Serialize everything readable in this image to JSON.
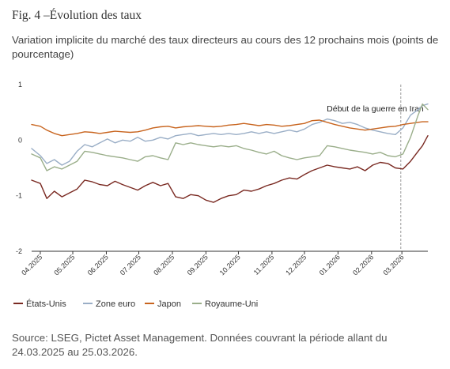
{
  "figure": {
    "title": "Fig. 4 –Évolution des taux",
    "subtitle": "Variation implicite du marché des taux directeurs au cours des 12 prochains mois (points de pourcentage)",
    "source": "Source: LSEG, Pictet Asset Management. Données couvrant la période allant du 24.03.2025 au 25.03.2026."
  },
  "chart_data": {
    "type": "line",
    "title": "Fig. 4 –Évolution des taux",
    "subtitle": "Variation implicite du marché des taux directeurs au cours des 12 prochains mois (points de pourcentage)",
    "ylim": [
      -2,
      1
    ],
    "yticks": [
      -2,
      -1,
      0,
      1
    ],
    "ytick_labels": [
      "-2",
      "-1",
      "0",
      "1"
    ],
    "xlim": [
      "2025-03-24",
      "2026-03-25"
    ],
    "xticks": [
      "2025-04-01",
      "2025-05-01",
      "2025-06-01",
      "2025-07-01",
      "2025-08-01",
      "2025-09-01",
      "2025-10-01",
      "2025-11-01",
      "2025-12-01",
      "2026-01-01",
      "2026-02-01",
      "2026-03-01"
    ],
    "xtick_labels": [
      "04.2025",
      "05.2025",
      "06.2025",
      "07.2025",
      "08.2025",
      "09.2025",
      "10.2025",
      "11.2025",
      "12.2025",
      "01.2026",
      "02.2026",
      "03.2026"
    ],
    "grid": false,
    "legend_position": "bottom",
    "annotation": {
      "text": "Début de la guerre en Iran",
      "x": "2026-02-28"
    },
    "series": [
      {
        "name": "États-Unis",
        "color": "#7a2a22",
        "points": [
          [
            "2025-03-24",
            -0.72
          ],
          [
            "2025-04-01",
            -0.78
          ],
          [
            "2025-04-07",
            -1.05
          ],
          [
            "2025-04-14",
            -0.92
          ],
          [
            "2025-04-21",
            -1.02
          ],
          [
            "2025-04-28",
            -0.95
          ],
          [
            "2025-05-05",
            -0.88
          ],
          [
            "2025-05-12",
            -0.72
          ],
          [
            "2025-05-19",
            -0.75
          ],
          [
            "2025-05-26",
            -0.8
          ],
          [
            "2025-06-02",
            -0.82
          ],
          [
            "2025-06-09",
            -0.74
          ],
          [
            "2025-06-16",
            -0.8
          ],
          [
            "2025-06-23",
            -0.85
          ],
          [
            "2025-06-30",
            -0.9
          ],
          [
            "2025-07-07",
            -0.82
          ],
          [
            "2025-07-14",
            -0.76
          ],
          [
            "2025-07-21",
            -0.82
          ],
          [
            "2025-07-28",
            -0.78
          ],
          [
            "2025-08-04",
            -1.02
          ],
          [
            "2025-08-11",
            -1.05
          ],
          [
            "2025-08-18",
            -0.98
          ],
          [
            "2025-08-25",
            -1.0
          ],
          [
            "2025-09-01",
            -1.08
          ],
          [
            "2025-09-08",
            -1.12
          ],
          [
            "2025-09-15",
            -1.05
          ],
          [
            "2025-09-22",
            -1.0
          ],
          [
            "2025-09-29",
            -0.98
          ],
          [
            "2025-10-06",
            -0.9
          ],
          [
            "2025-10-13",
            -0.92
          ],
          [
            "2025-10-20",
            -0.88
          ],
          [
            "2025-10-27",
            -0.82
          ],
          [
            "2025-11-03",
            -0.78
          ],
          [
            "2025-11-10",
            -0.72
          ],
          [
            "2025-11-17",
            -0.68
          ],
          [
            "2025-11-24",
            -0.7
          ],
          [
            "2025-12-01",
            -0.62
          ],
          [
            "2025-12-08",
            -0.55
          ],
          [
            "2025-12-15",
            -0.5
          ],
          [
            "2025-12-22",
            -0.45
          ],
          [
            "2025-12-29",
            -0.48
          ],
          [
            "2026-01-05",
            -0.5
          ],
          [
            "2026-01-12",
            -0.52
          ],
          [
            "2026-01-19",
            -0.48
          ],
          [
            "2026-01-26",
            -0.55
          ],
          [
            "2026-02-02",
            -0.45
          ],
          [
            "2026-02-09",
            -0.4
          ],
          [
            "2026-02-16",
            -0.42
          ],
          [
            "2026-02-23",
            -0.5
          ],
          [
            "2026-03-02",
            -0.52
          ],
          [
            "2026-03-09",
            -0.38
          ],
          [
            "2026-03-16",
            -0.2
          ],
          [
            "2026-03-20",
            -0.1
          ],
          [
            "2026-03-25",
            0.08
          ]
        ]
      },
      {
        "name": "Zone euro",
        "color": "#9aaec6",
        "points": [
          [
            "2025-03-24",
            -0.15
          ],
          [
            "2025-04-01",
            -0.28
          ],
          [
            "2025-04-07",
            -0.42
          ],
          [
            "2025-04-14",
            -0.35
          ],
          [
            "2025-04-21",
            -0.45
          ],
          [
            "2025-04-28",
            -0.38
          ],
          [
            "2025-05-05",
            -0.2
          ],
          [
            "2025-05-12",
            -0.08
          ],
          [
            "2025-05-19",
            -0.12
          ],
          [
            "2025-05-26",
            -0.05
          ],
          [
            "2025-06-02",
            0.02
          ],
          [
            "2025-06-09",
            -0.05
          ],
          [
            "2025-06-16",
            0.0
          ],
          [
            "2025-06-23",
            -0.02
          ],
          [
            "2025-06-30",
            0.05
          ],
          [
            "2025-07-07",
            -0.02
          ],
          [
            "2025-07-14",
            0.0
          ],
          [
            "2025-07-21",
            0.05
          ],
          [
            "2025-07-28",
            0.02
          ],
          [
            "2025-08-04",
            0.08
          ],
          [
            "2025-08-11",
            0.1
          ],
          [
            "2025-08-18",
            0.12
          ],
          [
            "2025-08-25",
            0.08
          ],
          [
            "2025-09-01",
            0.1
          ],
          [
            "2025-09-08",
            0.12
          ],
          [
            "2025-09-15",
            0.1
          ],
          [
            "2025-09-22",
            0.12
          ],
          [
            "2025-09-29",
            0.1
          ],
          [
            "2025-10-06",
            0.12
          ],
          [
            "2025-10-13",
            0.15
          ],
          [
            "2025-10-20",
            0.12
          ],
          [
            "2025-10-27",
            0.15
          ],
          [
            "2025-11-03",
            0.12
          ],
          [
            "2025-11-10",
            0.15
          ],
          [
            "2025-11-17",
            0.18
          ],
          [
            "2025-11-24",
            0.15
          ],
          [
            "2025-12-01",
            0.2
          ],
          [
            "2025-12-08",
            0.28
          ],
          [
            "2025-12-15",
            0.32
          ],
          [
            "2025-12-22",
            0.38
          ],
          [
            "2025-12-29",
            0.35
          ],
          [
            "2026-01-05",
            0.3
          ],
          [
            "2026-01-12",
            0.32
          ],
          [
            "2026-01-19",
            0.28
          ],
          [
            "2026-01-26",
            0.22
          ],
          [
            "2026-02-02",
            0.18
          ],
          [
            "2026-02-09",
            0.15
          ],
          [
            "2026-02-16",
            0.12
          ],
          [
            "2026-02-23",
            0.1
          ],
          [
            "2026-03-02",
            0.22
          ],
          [
            "2026-03-09",
            0.45
          ],
          [
            "2026-03-16",
            0.55
          ],
          [
            "2026-03-20",
            0.62
          ],
          [
            "2026-03-25",
            0.65
          ]
        ]
      },
      {
        "name": "Japon",
        "color": "#c8641e",
        "points": [
          [
            "2025-03-24",
            0.28
          ],
          [
            "2025-04-01",
            0.25
          ],
          [
            "2025-04-07",
            0.18
          ],
          [
            "2025-04-14",
            0.12
          ],
          [
            "2025-04-21",
            0.08
          ],
          [
            "2025-04-28",
            0.1
          ],
          [
            "2025-05-05",
            0.12
          ],
          [
            "2025-05-12",
            0.15
          ],
          [
            "2025-05-19",
            0.14
          ],
          [
            "2025-05-26",
            0.12
          ],
          [
            "2025-06-02",
            0.14
          ],
          [
            "2025-06-09",
            0.16
          ],
          [
            "2025-06-16",
            0.15
          ],
          [
            "2025-06-23",
            0.14
          ],
          [
            "2025-06-30",
            0.15
          ],
          [
            "2025-07-07",
            0.18
          ],
          [
            "2025-07-14",
            0.22
          ],
          [
            "2025-07-21",
            0.24
          ],
          [
            "2025-07-28",
            0.25
          ],
          [
            "2025-08-04",
            0.22
          ],
          [
            "2025-08-11",
            0.24
          ],
          [
            "2025-08-18",
            0.25
          ],
          [
            "2025-08-25",
            0.26
          ],
          [
            "2025-09-01",
            0.25
          ],
          [
            "2025-09-08",
            0.24
          ],
          [
            "2025-09-15",
            0.25
          ],
          [
            "2025-09-22",
            0.27
          ],
          [
            "2025-09-29",
            0.28
          ],
          [
            "2025-10-06",
            0.3
          ],
          [
            "2025-10-13",
            0.28
          ],
          [
            "2025-10-20",
            0.26
          ],
          [
            "2025-10-27",
            0.28
          ],
          [
            "2025-11-03",
            0.27
          ],
          [
            "2025-11-10",
            0.25
          ],
          [
            "2025-11-17",
            0.26
          ],
          [
            "2025-11-24",
            0.28
          ],
          [
            "2025-12-01",
            0.3
          ],
          [
            "2025-12-08",
            0.35
          ],
          [
            "2025-12-15",
            0.36
          ],
          [
            "2025-12-22",
            0.32
          ],
          [
            "2025-12-29",
            0.28
          ],
          [
            "2026-01-05",
            0.25
          ],
          [
            "2026-01-12",
            0.22
          ],
          [
            "2026-01-19",
            0.2
          ],
          [
            "2026-01-26",
            0.18
          ],
          [
            "2026-02-02",
            0.2
          ],
          [
            "2026-02-09",
            0.22
          ],
          [
            "2026-02-16",
            0.24
          ],
          [
            "2026-02-23",
            0.25
          ],
          [
            "2026-03-02",
            0.28
          ],
          [
            "2026-03-09",
            0.3
          ],
          [
            "2026-03-16",
            0.32
          ],
          [
            "2026-03-20",
            0.33
          ],
          [
            "2026-03-25",
            0.33
          ]
        ]
      },
      {
        "name": "Royaume-Uni",
        "color": "#9aae8a",
        "points": [
          [
            "2025-03-24",
            -0.25
          ],
          [
            "2025-04-01",
            -0.32
          ],
          [
            "2025-04-07",
            -0.55
          ],
          [
            "2025-04-14",
            -0.48
          ],
          [
            "2025-04-21",
            -0.52
          ],
          [
            "2025-04-28",
            -0.45
          ],
          [
            "2025-05-05",
            -0.38
          ],
          [
            "2025-05-12",
            -0.2
          ],
          [
            "2025-05-19",
            -0.22
          ],
          [
            "2025-05-26",
            -0.25
          ],
          [
            "2025-06-02",
            -0.28
          ],
          [
            "2025-06-09",
            -0.3
          ],
          [
            "2025-06-16",
            -0.32
          ],
          [
            "2025-06-23",
            -0.35
          ],
          [
            "2025-06-30",
            -0.38
          ],
          [
            "2025-07-07",
            -0.3
          ],
          [
            "2025-07-14",
            -0.28
          ],
          [
            "2025-07-21",
            -0.32
          ],
          [
            "2025-07-28",
            -0.35
          ],
          [
            "2025-08-04",
            -0.05
          ],
          [
            "2025-08-11",
            -0.08
          ],
          [
            "2025-08-18",
            -0.05
          ],
          [
            "2025-08-25",
            -0.08
          ],
          [
            "2025-09-01",
            -0.1
          ],
          [
            "2025-09-08",
            -0.12
          ],
          [
            "2025-09-15",
            -0.1
          ],
          [
            "2025-09-22",
            -0.12
          ],
          [
            "2025-09-29",
            -0.1
          ],
          [
            "2025-10-06",
            -0.15
          ],
          [
            "2025-10-13",
            -0.18
          ],
          [
            "2025-10-20",
            -0.22
          ],
          [
            "2025-10-27",
            -0.25
          ],
          [
            "2025-11-03",
            -0.2
          ],
          [
            "2025-11-10",
            -0.28
          ],
          [
            "2025-11-17",
            -0.32
          ],
          [
            "2025-11-24",
            -0.35
          ],
          [
            "2025-12-01",
            -0.32
          ],
          [
            "2025-12-08",
            -0.3
          ],
          [
            "2025-12-15",
            -0.28
          ],
          [
            "2025-12-22",
            -0.1
          ],
          [
            "2025-12-29",
            -0.12
          ],
          [
            "2026-01-05",
            -0.15
          ],
          [
            "2026-01-12",
            -0.18
          ],
          [
            "2026-01-19",
            -0.2
          ],
          [
            "2026-01-26",
            -0.22
          ],
          [
            "2026-02-02",
            -0.25
          ],
          [
            "2026-02-09",
            -0.22
          ],
          [
            "2026-02-16",
            -0.28
          ],
          [
            "2026-02-23",
            -0.3
          ],
          [
            "2026-03-02",
            -0.25
          ],
          [
            "2026-03-09",
            0.05
          ],
          [
            "2026-03-16",
            0.45
          ],
          [
            "2026-03-20",
            0.65
          ],
          [
            "2026-03-25",
            0.55
          ]
        ]
      }
    ]
  }
}
